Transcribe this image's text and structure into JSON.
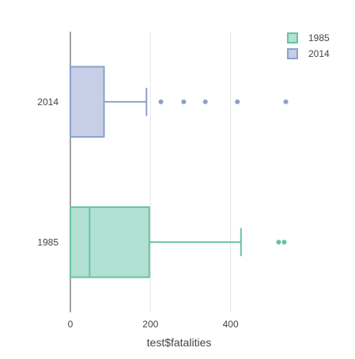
{
  "chart_data": {
    "type": "box",
    "orientation": "horizontal",
    "xlabel": "test$fatalities",
    "ylabel": "",
    "xlim": [
      0,
      535
    ],
    "x_ticks": [
      0,
      200,
      400
    ],
    "grid": true,
    "legend_position": "top-right",
    "categories": [
      "2014",
      "1985"
    ],
    "series": [
      {
        "name": "1985",
        "color": "#66c2a5",
        "fill": "rgba(102,194,165,0.5)",
        "min": 0,
        "q1": 0,
        "median": 48,
        "q3": 197,
        "max": 426,
        "outliers": [
          520,
          534
        ]
      },
      {
        "name": "2014",
        "color": "#8da0cb",
        "fill": "rgba(141,160,203,0.5)",
        "min": 0,
        "q1": 0,
        "median": 0,
        "q3": 84,
        "max": 190,
        "outliers": [
          226,
          283,
          337,
          417,
          538
        ]
      }
    ]
  }
}
